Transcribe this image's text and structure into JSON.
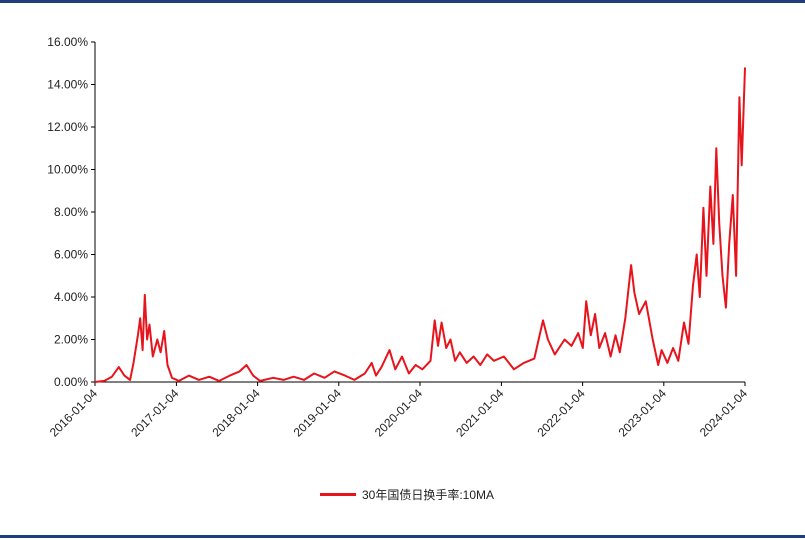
{
  "chart_data": {
    "type": "line",
    "title": "",
    "xlabel": "",
    "ylabel": "",
    "ylim": [
      0,
      16
    ],
    "y_ticks": [
      "0.00%",
      "2.00%",
      "4.00%",
      "6.00%",
      "8.00%",
      "10.00%",
      "12.00%",
      "14.00%",
      "16.00%"
    ],
    "x_ticks": [
      "2016-01-04",
      "2017-01-04",
      "2018-01-04",
      "2019-01-04",
      "2020-01-04",
      "2021-01-04",
      "2022-01-04",
      "2023-01-04",
      "2024-01-04"
    ],
    "grid": false,
    "legend_position": "bottom-center",
    "series": [
      {
        "name": "30年国债日换手率:10MA",
        "color": "#e8141c",
        "points": [
          [
            "2016-01-04",
            0.0
          ],
          [
            "2016-02-15",
            0.05
          ],
          [
            "2016-03-20",
            0.25
          ],
          [
            "2016-04-20",
            0.7
          ],
          [
            "2016-05-15",
            0.3
          ],
          [
            "2016-06-10",
            0.1
          ],
          [
            "2016-06-25",
            0.9
          ],
          [
            "2016-07-15",
            2.2
          ],
          [
            "2016-07-25",
            3.0
          ],
          [
            "2016-08-05",
            1.5
          ],
          [
            "2016-08-15",
            4.1
          ],
          [
            "2016-08-25",
            2.0
          ],
          [
            "2016-09-05",
            2.7
          ],
          [
            "2016-09-20",
            1.2
          ],
          [
            "2016-10-10",
            2.0
          ],
          [
            "2016-10-25",
            1.4
          ],
          [
            "2016-11-10",
            2.4
          ],
          [
            "2016-11-25",
            0.8
          ],
          [
            "2016-12-15",
            0.2
          ],
          [
            "2017-01-15",
            0.05
          ],
          [
            "2017-03-01",
            0.3
          ],
          [
            "2017-04-15",
            0.1
          ],
          [
            "2017-06-01",
            0.25
          ],
          [
            "2017-07-15",
            0.05
          ],
          [
            "2017-09-01",
            0.3
          ],
          [
            "2017-10-15",
            0.5
          ],
          [
            "2017-11-15",
            0.8
          ],
          [
            "2017-12-15",
            0.3
          ],
          [
            "2018-01-15",
            0.05
          ],
          [
            "2018-03-15",
            0.2
          ],
          [
            "2018-05-01",
            0.1
          ],
          [
            "2018-06-15",
            0.25
          ],
          [
            "2018-08-01",
            0.1
          ],
          [
            "2018-09-15",
            0.4
          ],
          [
            "2018-11-01",
            0.2
          ],
          [
            "2018-12-15",
            0.5
          ],
          [
            "2019-02-01",
            0.3
          ],
          [
            "2019-03-15",
            0.1
          ],
          [
            "2019-05-01",
            0.4
          ],
          [
            "2019-06-01",
            0.9
          ],
          [
            "2019-06-20",
            0.3
          ],
          [
            "2019-07-15",
            0.7
          ],
          [
            "2019-08-20",
            1.5
          ],
          [
            "2019-09-15",
            0.6
          ],
          [
            "2019-10-15",
            1.2
          ],
          [
            "2019-11-15",
            0.4
          ],
          [
            "2019-12-15",
            0.8
          ],
          [
            "2020-01-15",
            0.6
          ],
          [
            "2020-02-20",
            1.0
          ],
          [
            "2020-03-10",
            2.9
          ],
          [
            "2020-03-25",
            1.7
          ],
          [
            "2020-04-10",
            2.8
          ],
          [
            "2020-05-01",
            1.6
          ],
          [
            "2020-05-20",
            2.0
          ],
          [
            "2020-06-10",
            1.0
          ],
          [
            "2020-07-01",
            1.4
          ],
          [
            "2020-08-01",
            0.9
          ],
          [
            "2020-09-01",
            1.2
          ],
          [
            "2020-10-01",
            0.8
          ],
          [
            "2020-11-01",
            1.3
          ],
          [
            "2020-12-01",
            1.0
          ],
          [
            "2021-01-15",
            1.2
          ],
          [
            "2021-03-01",
            0.6
          ],
          [
            "2021-04-15",
            0.9
          ],
          [
            "2021-06-01",
            1.1
          ],
          [
            "2021-07-10",
            2.9
          ],
          [
            "2021-08-01",
            2.0
          ],
          [
            "2021-09-01",
            1.3
          ],
          [
            "2021-10-15",
            2.0
          ],
          [
            "2021-11-15",
            1.7
          ],
          [
            "2021-12-15",
            2.3
          ],
          [
            "2022-01-05",
            1.6
          ],
          [
            "2022-01-20",
            3.8
          ],
          [
            "2022-02-10",
            2.2
          ],
          [
            "2022-03-01",
            3.2
          ],
          [
            "2022-03-20",
            1.6
          ],
          [
            "2022-04-15",
            2.3
          ],
          [
            "2022-05-10",
            1.2
          ],
          [
            "2022-06-01",
            2.2
          ],
          [
            "2022-06-20",
            1.4
          ],
          [
            "2022-07-15",
            3.0
          ],
          [
            "2022-08-10",
            5.5
          ],
          [
            "2022-08-25",
            4.2
          ],
          [
            "2022-09-15",
            3.2
          ],
          [
            "2022-10-15",
            3.8
          ],
          [
            "2022-11-15",
            2.0
          ],
          [
            "2022-12-10",
            0.8
          ],
          [
            "2022-12-25",
            1.5
          ],
          [
            "2023-01-20",
            0.9
          ],
          [
            "2023-02-15",
            1.6
          ],
          [
            "2023-03-10",
            1.0
          ],
          [
            "2023-04-05",
            2.8
          ],
          [
            "2023-04-25",
            1.8
          ],
          [
            "2023-05-15",
            4.5
          ],
          [
            "2023-06-01",
            6.0
          ],
          [
            "2023-06-15",
            4.0
          ],
          [
            "2023-07-01",
            8.2
          ],
          [
            "2023-07-15",
            5.0
          ],
          [
            "2023-08-01",
            9.2
          ],
          [
            "2023-08-15",
            6.5
          ],
          [
            "2023-08-28",
            11.0
          ],
          [
            "2023-09-10",
            7.5
          ],
          [
            "2023-09-25",
            5.0
          ],
          [
            "2023-10-10",
            3.5
          ],
          [
            "2023-10-25",
            6.5
          ],
          [
            "2023-11-10",
            8.8
          ],
          [
            "2023-11-25",
            5.0
          ],
          [
            "2023-12-10",
            13.4
          ],
          [
            "2023-12-20",
            10.2
          ],
          [
            "2024-01-04",
            14.8
          ]
        ]
      }
    ]
  }
}
